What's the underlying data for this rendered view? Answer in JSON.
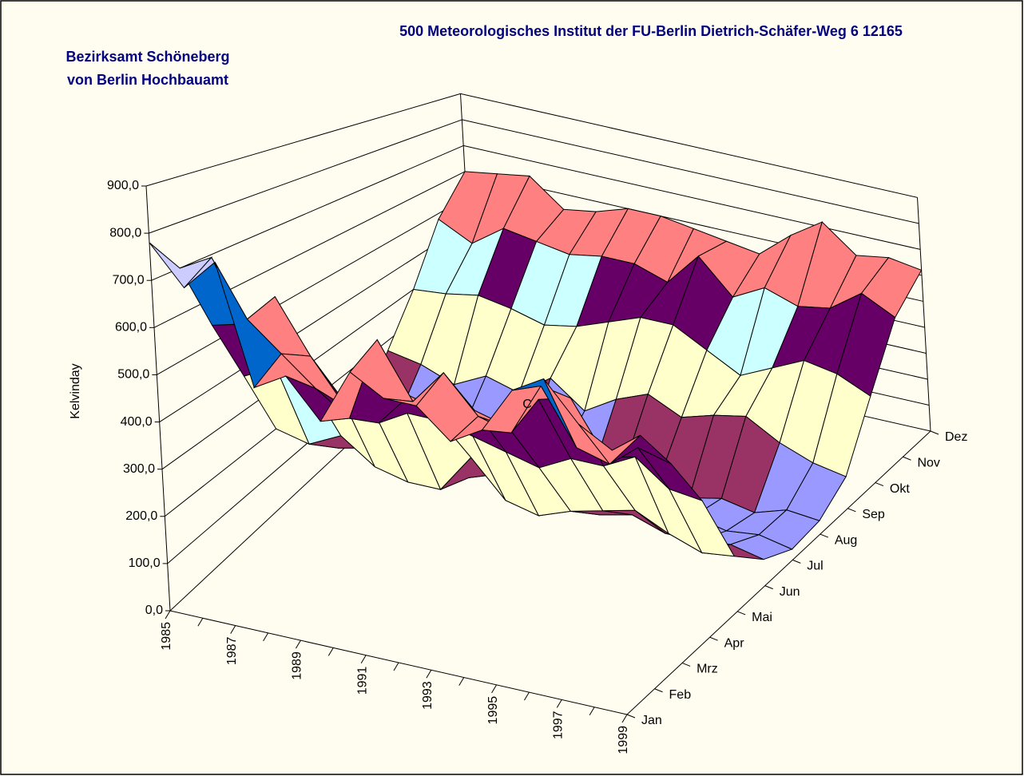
{
  "chart_data": {
    "type": "surface3d",
    "title": "500 Meteorologisches Institut der FU-Berlin Dietrich-Schäfer-Weg 6 12165",
    "subtitle": [
      "Bezirksamt Schöneberg",
      "von Berlin Hochbauamt"
    ],
    "y_label": "Kelvinday",
    "annotation": "C",
    "categories": [
      "1985",
      null,
      "1987",
      null,
      "1989",
      null,
      "1991",
      null,
      "1993",
      null,
      "1995",
      null,
      "1997",
      null,
      "1999"
    ],
    "ylim": [
      0,
      900
    ],
    "yticks": [
      {
        "value": 0,
        "label": "0,0"
      },
      {
        "value": 100,
        "label": "100,0"
      },
      {
        "value": 200,
        "label": "200,0"
      },
      {
        "value": 300,
        "label": "300,0"
      },
      {
        "value": 400,
        "label": "400,0"
      },
      {
        "value": 500,
        "label": "500,0"
      },
      {
        "value": 600,
        "label": "600,0"
      },
      {
        "value": 700,
        "label": "700,0"
      },
      {
        "value": 800,
        "label": "800,0"
      },
      {
        "value": 900,
        "label": "900,0"
      }
    ],
    "band_colors": [
      "#9999ff",
      "#993366",
      "#ffffcc",
      "#ccffff",
      "#660066",
      "#ff8080",
      "#0066cc",
      "#ccccff",
      "#000080"
    ],
    "series": [
      {
        "name": "Jan",
        "values": [
          780,
          700,
          770,
          520,
          560,
          480,
          600,
          560,
          560,
          500,
          540,
          640,
          680,
          600,
          560
        ]
      },
      {
        "name": "Feb",
        "values": [
          700,
          740,
          620,
          560,
          500,
          450,
          640,
          520,
          600,
          520,
          500,
          620,
          500,
          480,
          560
        ]
      },
      {
        "name": "Mrz",
        "values": [
          540,
          560,
          640,
          520,
          420,
          400,
          480,
          460,
          480,
          460,
          540,
          560,
          440,
          480,
          460
        ]
      },
      {
        "name": "Apr",
        "values": [
          380,
          420,
          400,
          380,
          360,
          380,
          380,
          360,
          340,
          320,
          360,
          360,
          400,
          340,
          330
        ]
      },
      {
        "name": "Mai",
        "values": [
          200,
          180,
          220,
          160,
          140,
          140,
          240,
          150,
          130,
          160,
          180,
          200,
          160,
          130,
          140
        ]
      },
      {
        "name": "Jun",
        "values": [
          120,
          110,
          130,
          100,
          90,
          110,
          140,
          80,
          100,
          90,
          110,
          80,
          80,
          90,
          70
        ]
      },
      {
        "name": "Jul",
        "values": [
          50,
          60,
          60,
          70,
          40,
          60,
          40,
          30,
          60,
          30,
          30,
          60,
          40,
          50,
          30
        ]
      },
      {
        "name": "Aug",
        "values": [
          60,
          40,
          70,
          50,
          40,
          30,
          40,
          20,
          60,
          30,
          20,
          40,
          20,
          50,
          40
        ]
      },
      {
        "name": "Sep",
        "values": [
          170,
          150,
          110,
          160,
          130,
          200,
          120,
          180,
          220,
          170,
          200,
          220,
          160,
          120,
          100
        ]
      },
      {
        "name": "Okt",
        "values": [
          300,
          310,
          330,
          310,
          280,
          300,
          340,
          380,
          380,
          320,
          260,
          310,
          360,
          340,
          290
        ]
      },
      {
        "name": "Nov",
        "values": [
          480,
          420,
          500,
          480,
          460,
          480,
          480,
          440,
          560,
          440,
          500,
          460,
          480,
          560,
          500
        ]
      },
      {
        "name": "Dez",
        "values": [
          600,
          620,
          640,
          540,
          560,
          600,
          600,
          580,
          560,
          540,
          640,
          720,
          620,
          640,
          620
        ]
      }
    ]
  }
}
